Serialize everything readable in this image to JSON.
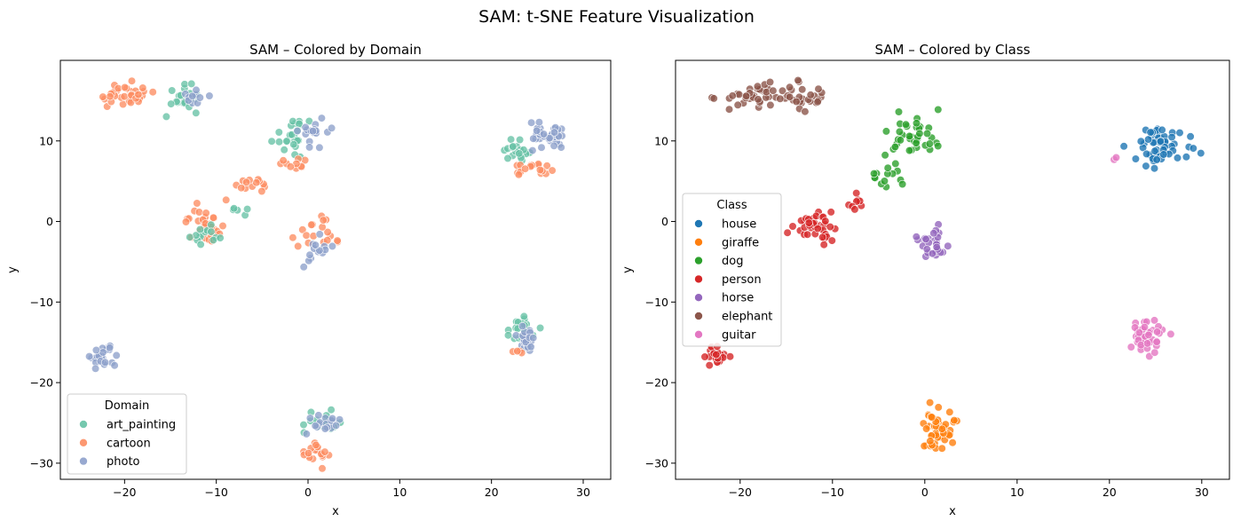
{
  "figure": {
    "title": "SAM: t-SNE Feature Visualization"
  },
  "chart_data": [
    {
      "type": "scatter",
      "title": "SAM – Colored by Domain",
      "xlabel": "x",
      "ylabel": "y",
      "xlim": [
        -27,
        33
      ],
      "ylim": [
        -32,
        20
      ],
      "xticks": [
        -20,
        -10,
        0,
        10,
        20,
        30
      ],
      "yticks": [
        -30,
        -20,
        -10,
        0,
        10
      ],
      "xtick_labels": [
        "−20",
        "−10",
        "0",
        "10",
        "20",
        "30"
      ],
      "ytick_labels": [
        "−30",
        "−20",
        "−10",
        "0",
        "10"
      ],
      "grid": false,
      "legend": {
        "title": "Domain",
        "placement": "lower-left"
      },
      "series": [
        {
          "name": "art_painting",
          "color": "#66c2a5"
        },
        {
          "name": "cartoon",
          "color": "#fc8d62"
        },
        {
          "name": "photo",
          "color": "#8da0cb"
        }
      ],
      "clusters": [
        {
          "series": "cartoon",
          "center": [
            -20,
            15.6
          ],
          "spread": [
            2.2,
            1.0
          ],
          "count": 35
        },
        {
          "series": "art_painting",
          "center": [
            -13.5,
            15.5
          ],
          "spread": [
            1.3,
            1.2
          ],
          "count": 20
        },
        {
          "series": "photo",
          "center": [
            -12.5,
            15.5
          ],
          "spread": [
            1.0,
            0.8
          ],
          "count": 10
        },
        {
          "series": "art_painting",
          "center": [
            -1.5,
            11.0
          ],
          "spread": [
            1.6,
            1.5
          ],
          "count": 25
        },
        {
          "series": "photo",
          "center": [
            1.0,
            11.0
          ],
          "spread": [
            1.2,
            1.2
          ],
          "count": 18
        },
        {
          "series": "cartoon",
          "center": [
            -1.5,
            7.0
          ],
          "spread": [
            1.0,
            0.5
          ],
          "count": 10
        },
        {
          "series": "cartoon",
          "center": [
            -6.0,
            4.5
          ],
          "spread": [
            1.5,
            1.2
          ],
          "count": 14
        },
        {
          "series": "art_painting",
          "center": [
            -7.5,
            1.5
          ],
          "spread": [
            1.0,
            0.5
          ],
          "count": 5
        },
        {
          "series": "cartoon",
          "center": [
            -11.5,
            0.0
          ],
          "spread": [
            1.5,
            1.1
          ],
          "count": 28
        },
        {
          "series": "art_painting",
          "center": [
            -11.5,
            -2.0
          ],
          "spread": [
            1.2,
            0.9
          ],
          "count": 14
        },
        {
          "series": "cartoon",
          "center": [
            1.0,
            -2.0
          ],
          "spread": [
            1.6,
            1.4
          ],
          "count": 18
        },
        {
          "series": "photo",
          "center": [
            1.0,
            -3.5
          ],
          "spread": [
            1.0,
            1.0
          ],
          "count": 14
        },
        {
          "series": "art_painting",
          "center": [
            23.0,
            8.5
          ],
          "spread": [
            1.5,
            1.0
          ],
          "count": 20
        },
        {
          "series": "photo",
          "center": [
            26.0,
            10.5
          ],
          "spread": [
            1.6,
            1.1
          ],
          "count": 35
        },
        {
          "series": "cartoon",
          "center": [
            24.5,
            6.5
          ],
          "spread": [
            1.3,
            0.5
          ],
          "count": 18
        },
        {
          "series": "art_painting",
          "center": [
            23.5,
            -13.5
          ],
          "spread": [
            1.3,
            1.3
          ],
          "count": 22
        },
        {
          "series": "photo",
          "center": [
            24.0,
            -14.5
          ],
          "spread": [
            1.1,
            1.0
          ],
          "count": 25
        },
        {
          "series": "cartoon",
          "center": [
            23.0,
            -16.0
          ],
          "spread": [
            0.6,
            0.3
          ],
          "count": 4
        },
        {
          "series": "photo",
          "center": [
            -22.5,
            -16.7
          ],
          "spread": [
            1.0,
            0.8
          ],
          "count": 25
        },
        {
          "series": "art_painting",
          "center": [
            2.0,
            -25.0
          ],
          "spread": [
            1.4,
            1.2
          ],
          "count": 20
        },
        {
          "series": "photo",
          "center": [
            1.5,
            -25.0
          ],
          "spread": [
            1.2,
            0.8
          ],
          "count": 18
        },
        {
          "series": "cartoon",
          "center": [
            1.2,
            -28.5
          ],
          "spread": [
            1.0,
            1.1
          ],
          "count": 20
        }
      ]
    },
    {
      "type": "scatter",
      "title": "SAM – Colored by Class",
      "xlabel": "x",
      "ylabel": "y",
      "xlim": [
        -27,
        33
      ],
      "ylim": [
        -32,
        20
      ],
      "xticks": [
        -20,
        -10,
        0,
        10,
        20,
        30
      ],
      "yticks": [
        -30,
        -20,
        -10,
        0,
        10
      ],
      "xtick_labels": [
        "−20",
        "−10",
        "0",
        "10",
        "20",
        "30"
      ],
      "ytick_labels": [
        "−30",
        "−20",
        "−10",
        "0",
        "10"
      ],
      "grid": false,
      "legend": {
        "title": "Class",
        "placement": "center-left"
      },
      "series": [
        {
          "name": "house",
          "color": "#1f77b4"
        },
        {
          "name": "giraffe",
          "color": "#ff7f0e"
        },
        {
          "name": "dog",
          "color": "#2ca02c"
        },
        {
          "name": "person",
          "color": "#d62728"
        },
        {
          "name": "horse",
          "color": "#9467bd"
        },
        {
          "name": "elephant",
          "color": "#8c564b"
        },
        {
          "name": "guitar",
          "color": "#e377c2"
        }
      ],
      "clusters": [
        {
          "series": "elephant",
          "center": [
            -18.5,
            15.5
          ],
          "spread": [
            2.6,
            1.1
          ],
          "count": 40
        },
        {
          "series": "elephant",
          "center": [
            -13.0,
            15.5
          ],
          "spread": [
            1.3,
            1.2
          ],
          "count": 25
        },
        {
          "series": "dog",
          "center": [
            -1.0,
            10.5
          ],
          "spread": [
            1.6,
            1.8
          ],
          "count": 40
        },
        {
          "series": "dog",
          "center": [
            -4.5,
            5.5
          ],
          "spread": [
            1.5,
            1.5
          ],
          "count": 14
        },
        {
          "series": "person",
          "center": [
            -11.5,
            -0.5
          ],
          "spread": [
            1.8,
            1.3
          ],
          "count": 40
        },
        {
          "series": "person",
          "center": [
            -7.5,
            2.5
          ],
          "spread": [
            0.8,
            1.2
          ],
          "count": 8
        },
        {
          "series": "horse",
          "center": [
            1.0,
            -3.0
          ],
          "spread": [
            1.1,
            1.2
          ],
          "count": 30
        },
        {
          "series": "house",
          "center": [
            25.5,
            9.5
          ],
          "spread": [
            2.0,
            1.6
          ],
          "count": 60
        },
        {
          "series": "guitar",
          "center": [
            24.0,
            -14.0
          ],
          "spread": [
            1.2,
            1.3
          ],
          "count": 45
        },
        {
          "series": "guitar",
          "center": [
            20.5,
            7.5
          ],
          "spread": [
            0.5,
            0.3
          ],
          "count": 2
        },
        {
          "series": "person",
          "center": [
            -22.5,
            -16.8
          ],
          "spread": [
            0.9,
            0.7
          ],
          "count": 22
        },
        {
          "series": "giraffe",
          "center": [
            1.5,
            -26.0
          ],
          "spread": [
            1.3,
            1.6
          ],
          "count": 55
        }
      ]
    }
  ]
}
